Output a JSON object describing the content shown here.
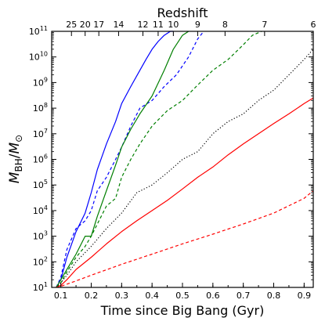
{
  "chart_data": {
    "type": "line",
    "xlabel": "Time since Big Bang (Gyr)",
    "ylabel": "M_BH/M_⊙",
    "top_xlabel": "Redshift",
    "xlim": [
      0.07,
      0.93
    ],
    "ylim": [
      10,
      100000000000
    ],
    "yscale": "log",
    "grid": false,
    "x_ticks": [
      0.1,
      0.2,
      0.3,
      0.4,
      0.5,
      0.6,
      0.7,
      0.8,
      0.9
    ],
    "x_tick_labels": [
      "0.1",
      "0.2",
      "0.3",
      "0.4",
      "0.5",
      "0.6",
      "0.7",
      "0.8",
      "0.9"
    ],
    "y_tick_exponents": [
      1,
      2,
      3,
      4,
      5,
      6,
      7,
      8,
      9,
      10,
      11
    ],
    "top_ticks": [
      {
        "label": "25",
        "t": 0.135
      },
      {
        "label": "20",
        "t": 0.18
      },
      {
        "label": "17",
        "t": 0.225
      },
      {
        "label": "14",
        "t": 0.29
      },
      {
        "label": "12",
        "t": 0.37
      },
      {
        "label": "11",
        "t": 0.42
      },
      {
        "label": "10",
        "t": 0.47
      },
      {
        "label": "9",
        "t": 0.55
      },
      {
        "label": "8",
        "t": 0.64
      },
      {
        "label": "7",
        "t": 0.77
      },
      {
        "label": "6",
        "t": 0.93
      }
    ],
    "series": [
      {
        "color": "#0000ff",
        "style": "solid",
        "x": [
          0.085,
          0.1,
          0.12,
          0.15,
          0.18,
          0.2,
          0.22,
          0.25,
          0.28,
          0.3,
          0.33,
          0.36,
          0.38,
          0.4,
          0.42,
          0.44,
          0.46,
          0.47
        ],
        "y": [
          10,
          20,
          150,
          1500,
          8000,
          50000,
          400000,
          4000000,
          30000000,
          150000000,
          700000000,
          3000000000,
          8000000000,
          20000000000,
          40000000000,
          70000000000,
          100000000000,
          100000000000
        ]
      },
      {
        "color": "#0000ff",
        "style": "dashed",
        "x": [
          0.085,
          0.1,
          0.12,
          0.15,
          0.18,
          0.2,
          0.22,
          0.25,
          0.28,
          0.3,
          0.33,
          0.36,
          0.4,
          0.44,
          0.48,
          0.52,
          0.55,
          0.57
        ],
        "y": [
          10,
          25,
          300,
          2000,
          4000,
          10000,
          60000,
          200000,
          1000000,
          3000000,
          20000000,
          100000000,
          200000000,
          700000000,
          2000000000,
          10000000000,
          50000000000,
          100000000000
        ]
      },
      {
        "color": "#007f00",
        "style": "solid",
        "x": [
          0.085,
          0.1,
          0.12,
          0.15,
          0.18,
          0.2,
          0.22,
          0.25,
          0.28,
          0.3,
          0.33,
          0.36,
          0.4,
          0.44,
          0.47,
          0.5,
          0.52
        ],
        "y": [
          10,
          20,
          50,
          200,
          1000,
          1000,
          6000,
          60000,
          600000,
          3000000,
          15000000,
          60000000,
          300000000,
          3000000000,
          20000000000,
          70000000000,
          100000000000
        ]
      },
      {
        "color": "#007f00",
        "style": "dashed",
        "x": [
          0.085,
          0.1,
          0.12,
          0.15,
          0.18,
          0.2,
          0.22,
          0.25,
          0.28,
          0.3,
          0.33,
          0.36,
          0.4,
          0.45,
          0.5,
          0.55,
          0.6,
          0.65,
          0.7,
          0.73,
          0.76
        ],
        "y": [
          10,
          15,
          40,
          150,
          400,
          1000,
          3000,
          15000,
          30000,
          200000,
          1000000,
          4000000,
          20000000,
          80000000,
          200000000,
          800000000,
          3000000000,
          8000000000,
          30000000000,
          70000000000,
          100000000000
        ]
      },
      {
        "color": "#000000",
        "style": "dotted",
        "x": [
          0.085,
          0.1,
          0.12,
          0.15,
          0.2,
          0.25,
          0.3,
          0.35,
          0.4,
          0.45,
          0.5,
          0.55,
          0.6,
          0.65,
          0.7,
          0.75,
          0.8,
          0.85,
          0.9,
          0.93
        ],
        "y": [
          10,
          15,
          30,
          100,
          400,
          2000,
          8000,
          50000,
          100000,
          300000,
          1000000,
          2000000,
          10000000,
          30000000,
          60000000,
          200000000,
          500000000,
          2000000000,
          8000000000,
          20000000000
        ]
      },
      {
        "color": "#ff0000",
        "style": "solid",
        "x": [
          0.085,
          0.1,
          0.12,
          0.15,
          0.2,
          0.25,
          0.3,
          0.35,
          0.4,
          0.45,
          0.5,
          0.55,
          0.6,
          0.65,
          0.7,
          0.75,
          0.8,
          0.85,
          0.9,
          0.93
        ],
        "y": [
          10,
          12,
          20,
          50,
          150,
          500,
          1500,
          4000,
          10000,
          25000,
          70000,
          200000,
          500000,
          1500000,
          4000000,
          10000000,
          25000000,
          60000000,
          150000000,
          250000000
        ]
      },
      {
        "color": "#ff0000",
        "style": "dashed",
        "x": [
          0.085,
          0.1,
          0.15,
          0.2,
          0.3,
          0.4,
          0.5,
          0.6,
          0.7,
          0.8,
          0.9,
          0.93
        ],
        "y": [
          10,
          11,
          18,
          30,
          80,
          200,
          500,
          1200,
          3000,
          8000,
          30000,
          60000
        ]
      }
    ]
  }
}
